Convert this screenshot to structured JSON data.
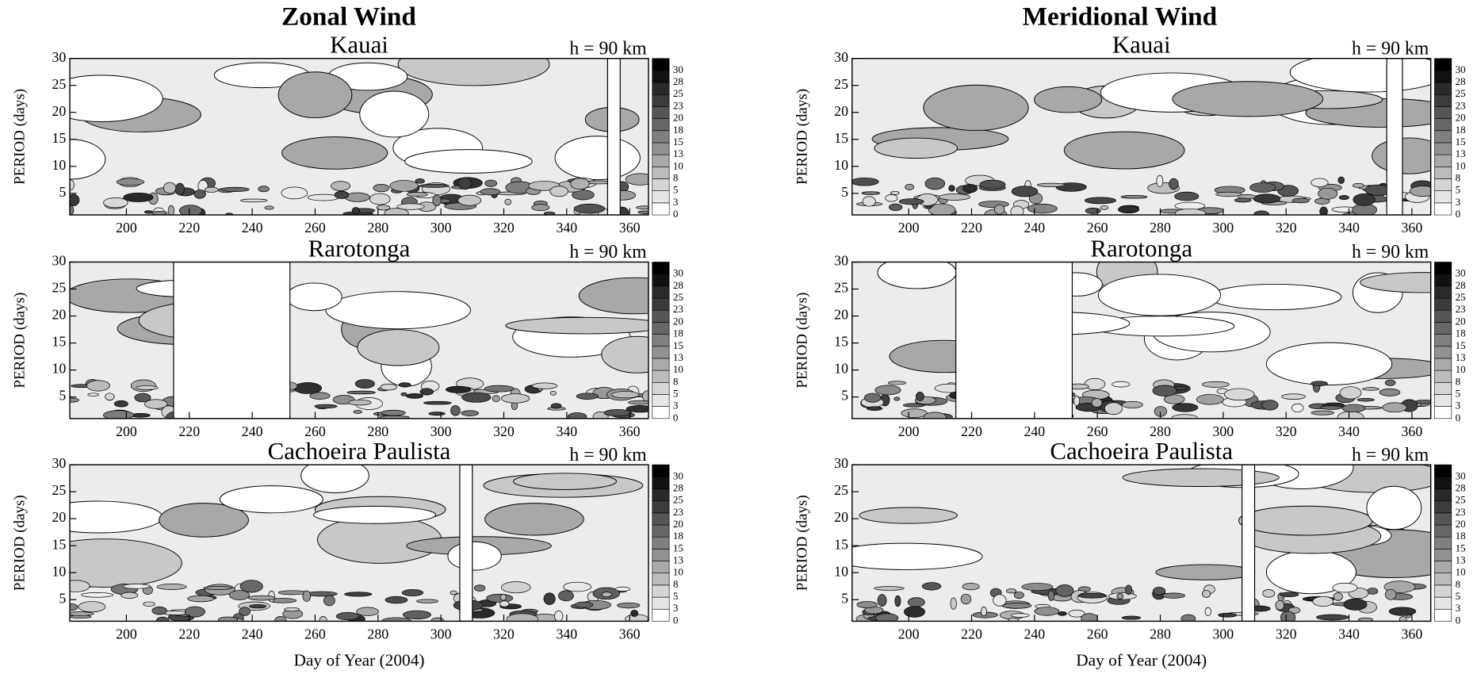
{
  "column_titles": [
    "Zonal Wind",
    "Meridional Wind"
  ],
  "x_label": "Day of Year  (2004)",
  "chart_data": [
    {
      "type": "contour",
      "title": "Kauai",
      "annotation": "h = 90 km",
      "ylabel": "PERIOD (days)",
      "xlim": [
        182,
        366
      ],
      "xticks": [
        200,
        220,
        240,
        260,
        280,
        300,
        320,
        340,
        360
      ],
      "ylim": [
        1,
        30
      ],
      "yticks": [
        5,
        10,
        15,
        20,
        25,
        30
      ],
      "data_gaps": [
        [
          353,
          357
        ]
      ],
      "colorbar_ticks": [
        0,
        3,
        5,
        8,
        10,
        13,
        15,
        18,
        20,
        23,
        25,
        28,
        30
      ]
    },
    {
      "type": "contour",
      "title": "Rarotonga",
      "annotation": "h = 90 km",
      "ylabel": "PERIOD (days)",
      "xlim": [
        182,
        366
      ],
      "xticks": [
        200,
        220,
        240,
        260,
        280,
        300,
        320,
        340,
        360
      ],
      "ylim": [
        1,
        30
      ],
      "yticks": [
        5,
        10,
        15,
        20,
        25,
        30
      ],
      "data_gaps": [
        [
          215,
          252
        ]
      ],
      "colorbar_ticks": [
        0,
        3,
        5,
        8,
        10,
        13,
        15,
        18,
        20,
        23,
        25,
        28,
        30
      ]
    },
    {
      "type": "contour",
      "title": "Cachoeira Paulista",
      "annotation": "h = 90 km",
      "ylabel": "PERIOD (days)",
      "xlim": [
        182,
        366
      ],
      "xticks": [
        200,
        220,
        240,
        260,
        280,
        300,
        320,
        340,
        360
      ],
      "ylim": [
        1,
        30
      ],
      "yticks": [
        5,
        10,
        15,
        20,
        25,
        30
      ],
      "data_gaps": [
        [
          306,
          310
        ]
      ],
      "colorbar_ticks": [
        0,
        3,
        5,
        8,
        10,
        13,
        15,
        18,
        20,
        23,
        25,
        28,
        30
      ]
    },
    {
      "type": "contour",
      "title": "Kauai",
      "annotation": "h = 90 km",
      "ylabel": "PERIOD (days)",
      "xlim": [
        182,
        366
      ],
      "xticks": [
        200,
        220,
        240,
        260,
        280,
        300,
        320,
        340,
        360
      ],
      "ylim": [
        1,
        30
      ],
      "yticks": [
        5,
        10,
        15,
        20,
        25,
        30
      ],
      "data_gaps": [
        [
          352,
          357
        ]
      ],
      "colorbar_ticks": [
        0,
        3,
        5,
        8,
        10,
        13,
        15,
        18,
        20,
        23,
        25,
        28,
        30
      ]
    },
    {
      "type": "contour",
      "title": "Rarotonga",
      "annotation": "h = 90 km",
      "ylabel": "PERIOD (days)",
      "xlim": [
        182,
        366
      ],
      "xticks": [
        200,
        220,
        240,
        260,
        280,
        300,
        320,
        340,
        360
      ],
      "ylim": [
        1,
        30
      ],
      "yticks": [
        5,
        10,
        15,
        20,
        25,
        30
      ],
      "data_gaps": [
        [
          215,
          252
        ]
      ],
      "colorbar_ticks": [
        0,
        3,
        5,
        8,
        10,
        13,
        15,
        18,
        20,
        23,
        25,
        28,
        30
      ]
    },
    {
      "type": "contour",
      "title": "Cachoeira Paulista",
      "annotation": "h = 90 km",
      "ylabel": "PERIOD (days)",
      "xlim": [
        182,
        366
      ],
      "xticks": [
        200,
        220,
        240,
        260,
        280,
        300,
        320,
        340,
        360
      ],
      "ylim": [
        1,
        30
      ],
      "yticks": [
        5,
        10,
        15,
        20,
        25,
        30
      ],
      "data_gaps": [
        [
          306,
          310
        ]
      ],
      "colorbar_ticks": [
        0,
        3,
        5,
        8,
        10,
        13,
        15,
        18,
        20,
        23,
        25,
        28,
        30
      ]
    }
  ]
}
